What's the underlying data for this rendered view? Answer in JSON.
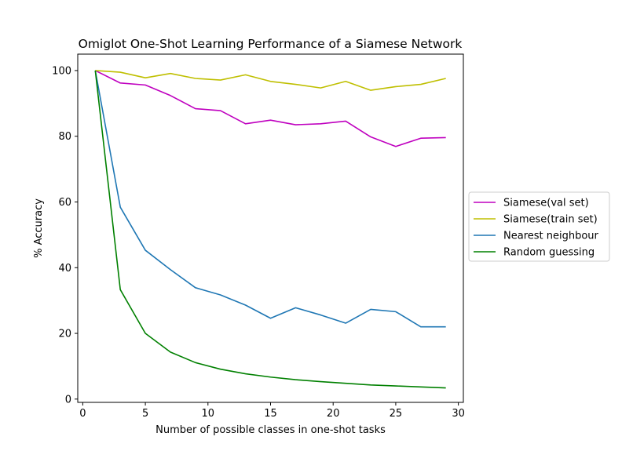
{
  "chart_data": {
    "type": "line",
    "title": "Omiglot One-Shot Learning Performance of a Siamese Network",
    "xlabel": "Number of possible classes in one-shot tasks",
    "ylabel": "% Accuracy",
    "xlim": [
      -0.4,
      30.4
    ],
    "ylim": [
      -1,
      105
    ],
    "xticks": [
      0,
      5,
      10,
      15,
      20,
      25,
      30
    ],
    "yticks": [
      0,
      20,
      40,
      60,
      80,
      100
    ],
    "legend_placement": "right-outside",
    "grid": false,
    "x": [
      1,
      3,
      5,
      7,
      9,
      11,
      13,
      15,
      17,
      19,
      21,
      23,
      25,
      27,
      29
    ],
    "series": [
      {
        "name": "Siamese(val set)",
        "color": "#bf00bf",
        "values": [
          100,
          96.2,
          95.6,
          92.4,
          88.4,
          87.8,
          83.8,
          84.9,
          83.5,
          83.8,
          84.6,
          79.8,
          76.9,
          79.4,
          79.6
        ]
      },
      {
        "name": "Siamese(train set)",
        "color": "#bfbf00",
        "values": [
          100,
          99.5,
          97.8,
          99.1,
          97.6,
          97.1,
          98.7,
          96.7,
          95.8,
          94.7,
          96.7,
          94.0,
          95.1,
          95.8,
          97.6
        ]
      },
      {
        "name": "Nearest neighbour",
        "color": "#1f77b4",
        "values": [
          100,
          58.4,
          45.3,
          39.4,
          33.9,
          31.7,
          28.6,
          24.6,
          27.8,
          25.6,
          23.1,
          27.3,
          26.6,
          22.0,
          22.0
        ]
      },
      {
        "name": "Random guessing",
        "color": "#008000",
        "values": [
          100,
          33.3,
          20.0,
          14.3,
          11.1,
          9.1,
          7.7,
          6.7,
          5.9,
          5.3,
          4.8,
          4.3,
          4.0,
          3.7,
          3.4
        ]
      }
    ]
  }
}
